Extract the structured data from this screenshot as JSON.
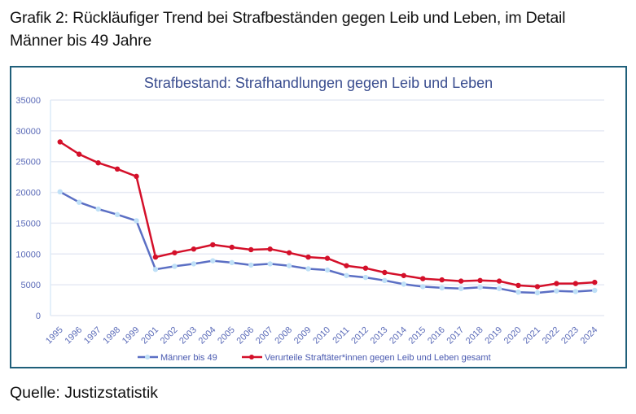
{
  "heading": {
    "line1": "Grafik 2: Rückläufiger Trend bei Strafbeständen gegen Leib und Leben, im Detail",
    "line2": "Männer bis 49 Jahre"
  },
  "source": "Quelle: Justizstatistik",
  "colors": {
    "frame": "#1f5f7a",
    "series_blue_line": "#5b6fc4",
    "series_blue_marker": "#bfe0f7",
    "series_red": "#d4102a",
    "grid": "#e6eaf4",
    "axis_text": "#5b6bb8"
  },
  "chart_data": {
    "type": "line",
    "title": "Strafbestand: Strafhandlungen gegen Leib und Leben",
    "xlabel": "",
    "ylabel": "",
    "ylim": [
      0,
      35000
    ],
    "yticks": [
      0,
      5000,
      10000,
      15000,
      20000,
      25000,
      30000,
      35000
    ],
    "grid": true,
    "legend_position": "bottom",
    "categories": [
      "1995",
      "1996",
      "1997",
      "1998",
      "1999",
      "2001",
      "2002",
      "2003",
      "2004",
      "2005",
      "2006",
      "2007",
      "2008",
      "2009",
      "2010",
      "2011",
      "2012",
      "2013",
      "2014",
      "2015",
      "2016",
      "2017",
      "2018",
      "2019",
      "2020",
      "2021",
      "2022",
      "2023",
      "2024"
    ],
    "series": [
      {
        "name": "Männer bis 49",
        "color": "#5b6fc4",
        "marker_color": "#bfe0f7",
        "values": [
          20100,
          18400,
          17300,
          16400,
          15400,
          7500,
          8000,
          8400,
          8900,
          8600,
          8200,
          8400,
          8100,
          7600,
          7400,
          6500,
          6200,
          5700,
          5100,
          4700,
          4500,
          4400,
          4600,
          4400,
          3800,
          3700,
          4000,
          3900,
          4100
        ]
      },
      {
        "name": "Verurteile Straftäter*innen gegen Leib und Leben gesamt",
        "color": "#d4102a",
        "marker_color": "#d4102a",
        "values": [
          28200,
          26200,
          24800,
          23800,
          22600,
          9500,
          10200,
          10800,
          11500,
          11100,
          10700,
          10800,
          10200,
          9500,
          9300,
          8100,
          7700,
          7000,
          6500,
          6000,
          5800,
          5600,
          5700,
          5600,
          4900,
          4700,
          5200,
          5200,
          5400
        ]
      }
    ]
  }
}
